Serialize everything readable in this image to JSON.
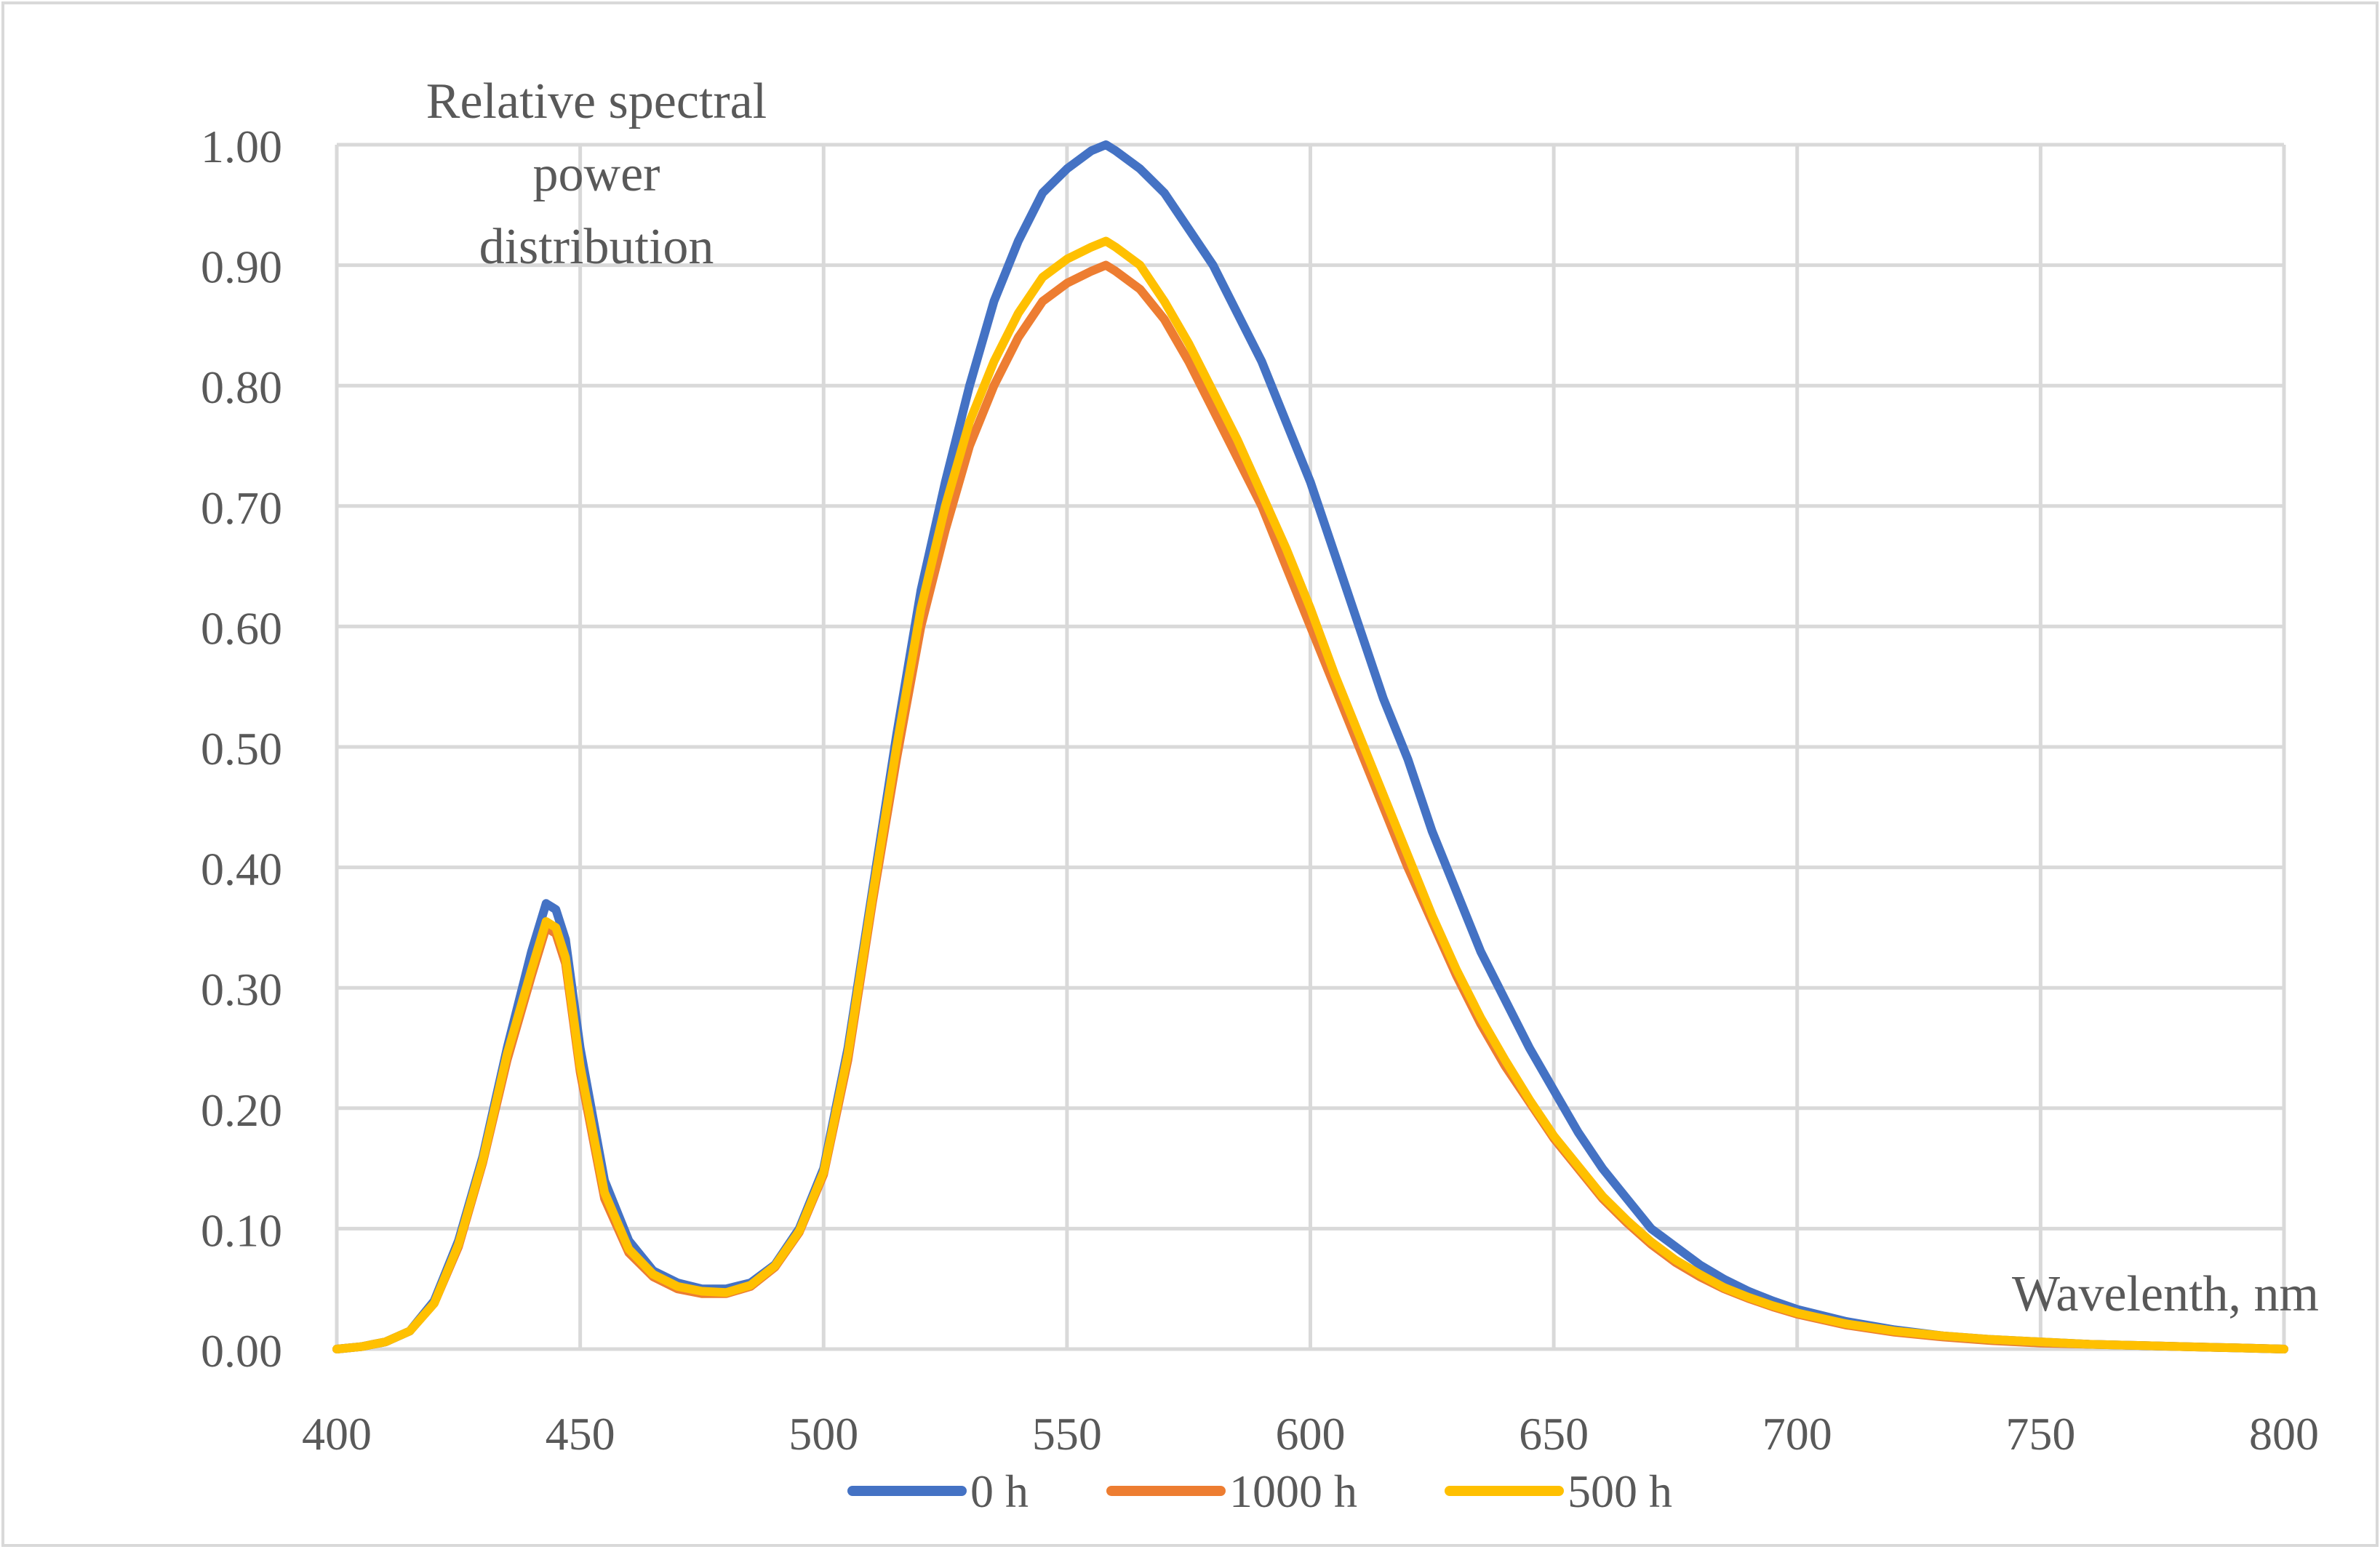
{
  "chart_data": {
    "type": "line",
    "title": "",
    "ylabel": "Relative spectral power distribution",
    "ylabel_lines": [
      "Relative spectral",
      "power",
      "distribution"
    ],
    "xlabel": "Wavelenth, nm",
    "xlim": [
      400,
      800
    ],
    "ylim": [
      0,
      1.0
    ],
    "x_ticks": [
      "400",
      "450",
      "500",
      "550",
      "600",
      "650",
      "700",
      "750",
      "800"
    ],
    "y_ticks": [
      "0.00",
      "0.10",
      "0.20",
      "0.30",
      "0.40",
      "0.50",
      "0.60",
      "0.70",
      "0.80",
      "0.90",
      "1.00"
    ],
    "grid": true,
    "legend_position": "bottom",
    "x": [
      400,
      405,
      410,
      415,
      420,
      425,
      430,
      435,
      440,
      443,
      445,
      447,
      450,
      455,
      460,
      465,
      470,
      475,
      480,
      485,
      490,
      495,
      500,
      505,
      510,
      515,
      520,
      525,
      530,
      535,
      540,
      545,
      550,
      555,
      558,
      560,
      565,
      570,
      575,
      580,
      585,
      590,
      595,
      600,
      605,
      610,
      615,
      620,
      625,
      630,
      635,
      640,
      645,
      650,
      655,
      660,
      665,
      670,
      675,
      680,
      685,
      690,
      695,
      700,
      710,
      720,
      730,
      740,
      750,
      760,
      770,
      780,
      790,
      800
    ],
    "series": [
      {
        "name": "0 h",
        "color": "#4472C4",
        "values": [
          0.0,
          0.002,
          0.006,
          0.015,
          0.04,
          0.09,
          0.16,
          0.25,
          0.33,
          0.37,
          0.365,
          0.34,
          0.25,
          0.14,
          0.09,
          0.065,
          0.055,
          0.05,
          0.05,
          0.055,
          0.07,
          0.1,
          0.15,
          0.25,
          0.38,
          0.51,
          0.63,
          0.72,
          0.8,
          0.87,
          0.92,
          0.96,
          0.98,
          0.995,
          1.0,
          0.995,
          0.98,
          0.96,
          0.93,
          0.9,
          0.86,
          0.82,
          0.77,
          0.72,
          0.66,
          0.6,
          0.54,
          0.49,
          0.43,
          0.38,
          0.33,
          0.29,
          0.25,
          0.215,
          0.18,
          0.15,
          0.125,
          0.1,
          0.085,
          0.07,
          0.058,
          0.048,
          0.04,
          0.033,
          0.023,
          0.016,
          0.011,
          0.008,
          0.006,
          0.004,
          0.003,
          0.002,
          0.001,
          0.0
        ]
      },
      {
        "name": "1000 h",
        "color": "#ED7D31",
        "values": [
          0.0,
          0.002,
          0.006,
          0.015,
          0.038,
          0.085,
          0.155,
          0.24,
          0.31,
          0.35,
          0.345,
          0.32,
          0.23,
          0.125,
          0.08,
          0.06,
          0.05,
          0.046,
          0.046,
          0.052,
          0.068,
          0.097,
          0.145,
          0.24,
          0.37,
          0.49,
          0.6,
          0.68,
          0.75,
          0.8,
          0.84,
          0.87,
          0.885,
          0.895,
          0.9,
          0.895,
          0.88,
          0.855,
          0.82,
          0.78,
          0.74,
          0.7,
          0.65,
          0.6,
          0.55,
          0.5,
          0.45,
          0.4,
          0.355,
          0.31,
          0.27,
          0.235,
          0.205,
          0.175,
          0.15,
          0.125,
          0.105,
          0.087,
          0.072,
          0.06,
          0.05,
          0.042,
          0.035,
          0.029,
          0.02,
          0.014,
          0.01,
          0.007,
          0.005,
          0.004,
          0.003,
          0.002,
          0.001,
          0.0
        ]
      },
      {
        "name": "500 h",
        "color": "#FFC000",
        "values": [
          0.0,
          0.002,
          0.006,
          0.015,
          0.038,
          0.087,
          0.157,
          0.245,
          0.315,
          0.355,
          0.35,
          0.325,
          0.235,
          0.13,
          0.083,
          0.062,
          0.052,
          0.048,
          0.047,
          0.053,
          0.069,
          0.098,
          0.147,
          0.245,
          0.375,
          0.5,
          0.615,
          0.7,
          0.77,
          0.82,
          0.86,
          0.89,
          0.905,
          0.915,
          0.92,
          0.915,
          0.9,
          0.87,
          0.835,
          0.795,
          0.755,
          0.71,
          0.665,
          0.615,
          0.56,
          0.51,
          0.46,
          0.41,
          0.36,
          0.315,
          0.275,
          0.24,
          0.207,
          0.177,
          0.152,
          0.127,
          0.107,
          0.089,
          0.074,
          0.062,
          0.051,
          0.043,
          0.036,
          0.03,
          0.021,
          0.015,
          0.011,
          0.008,
          0.006,
          0.004,
          0.003,
          0.002,
          0.001,
          0.0
        ]
      }
    ]
  },
  "colors": {
    "grid": "#D9D9D9",
    "axis_text": "#595959",
    "border": "#D9D9D9"
  }
}
